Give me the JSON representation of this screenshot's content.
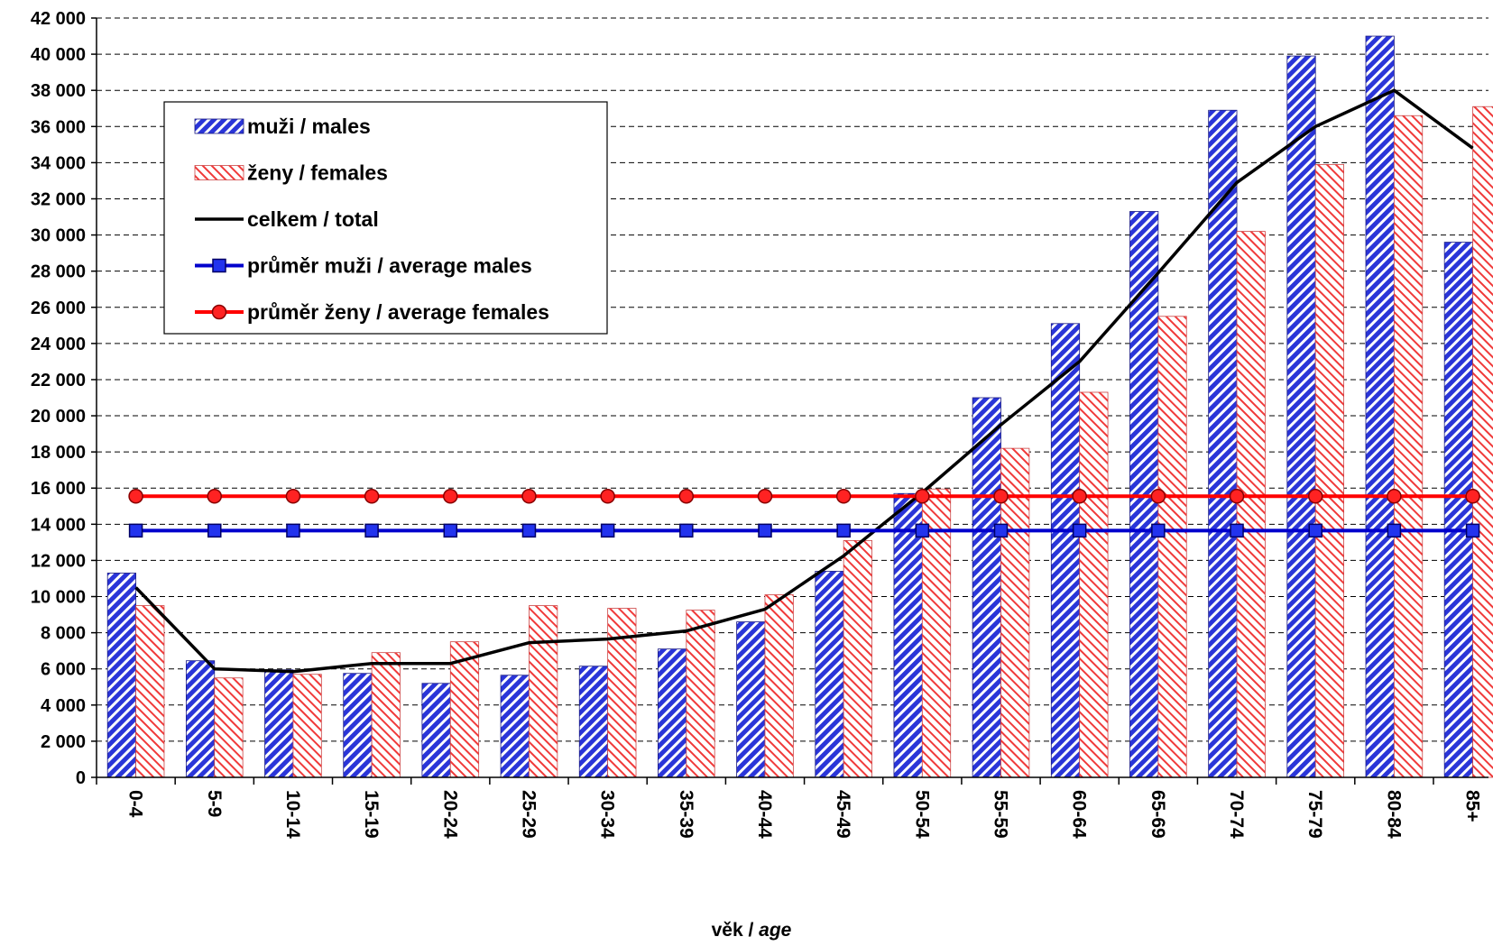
{
  "chart_data": {
    "type": "bar",
    "categories": [
      "0-4",
      "5-9",
      "10-14",
      "15-19",
      "20-24",
      "25-29",
      "30-34",
      "35-39",
      "40-44",
      "45-49",
      "50-54",
      "55-59",
      "60-64",
      "65-69",
      "70-74",
      "75-79",
      "80-84",
      "85+"
    ],
    "series": [
      {
        "name": "muži / males",
        "kind": "bar",
        "color": "#2233cc",
        "values": [
          11300,
          6450,
          5950,
          5750,
          5200,
          5650,
          6150,
          7100,
          8600,
          11400,
          15700,
          21000,
          25100,
          31300,
          36900,
          39900,
          41000,
          29600
        ]
      },
      {
        "name": "ženy / females",
        "kind": "bar",
        "color": "#ee3333",
        "values": [
          9500,
          5500,
          5700,
          6900,
          7500,
          9500,
          9350,
          9250,
          10100,
          13100,
          15950,
          18200,
          21300,
          25500,
          30200,
          33900,
          36600,
          37100
        ]
      },
      {
        "name": "celkem / total",
        "kind": "line",
        "color": "#000000",
        "values": [
          10500,
          6000,
          5850,
          6300,
          6300,
          7450,
          7650,
          8100,
          9300,
          12250,
          15750,
          19500,
          23000,
          27900,
          32900,
          36000,
          38000,
          34800
        ]
      },
      {
        "name": "průměr muži / average males",
        "kind": "line",
        "marker": "square",
        "color": "#0000cc",
        "values": [
          13650,
          13650,
          13650,
          13650,
          13650,
          13650,
          13650,
          13650,
          13650,
          13650,
          13650,
          13650,
          13650,
          13650,
          13650,
          13650,
          13650,
          13650
        ]
      },
      {
        "name": "průměr ženy / average females",
        "kind": "line",
        "marker": "circle",
        "color": "#ff0000",
        "values": [
          15550,
          15550,
          15550,
          15550,
          15550,
          15550,
          15550,
          15550,
          15550,
          15550,
          15550,
          15550,
          15550,
          15550,
          15550,
          15550,
          15550,
          15550
        ]
      }
    ],
    "ylim": [
      0,
      42000
    ],
    "ytick_step": 2000,
    "ytick_labels": [
      "0",
      "2 000",
      "4 000",
      "6 000",
      "8 000",
      "10 000",
      "12 000",
      "14 000",
      "16 000",
      "18 000",
      "20 000",
      "22 000",
      "24 000",
      "26 000",
      "28 000",
      "30 000",
      "32 000",
      "34 000",
      "36 000",
      "38 000",
      "40 000",
      "42 000"
    ],
    "xlabel": {
      "prefix": "věk / ",
      "italic": "age"
    },
    "grid": true,
    "legend_position": "top-left"
  }
}
